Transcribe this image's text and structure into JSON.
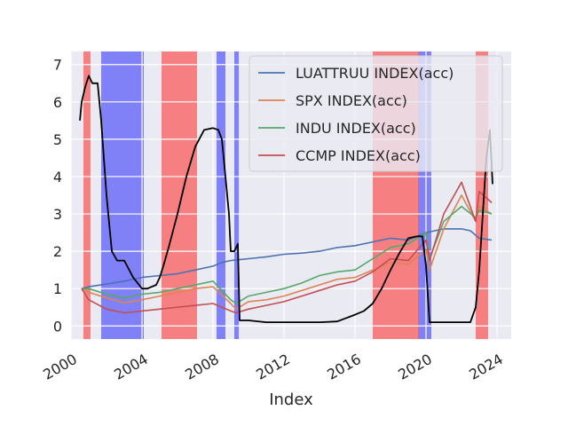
{
  "chart_data": {
    "type": "line",
    "title": "",
    "xlabel": "Index",
    "ylabel": "",
    "xlim": [
      2000.0,
      2024.8
    ],
    "ylim": [
      -0.35,
      7.35
    ],
    "x_ticks": [
      2000,
      2004,
      2008,
      2012,
      2016,
      2020,
      2024
    ],
    "y_ticks": [
      0,
      1,
      2,
      3,
      4,
      5,
      6,
      7
    ],
    "grid": true,
    "legend_position": "upper-right",
    "colors": {
      "background": "#eaeaf2",
      "grid": "#ffffff",
      "red_band": "#f77a7a",
      "blue_band": "#7a7af7",
      "rate": "#000000"
    },
    "shaded_regions": [
      {
        "start": 2000.7,
        "end": 2001.1,
        "color": "red"
      },
      {
        "start": 2001.7,
        "end": 2004.1,
        "color": "blue"
      },
      {
        "start": 2005.1,
        "end": 2007.1,
        "color": "red"
      },
      {
        "start": 2008.2,
        "end": 2008.7,
        "color": "blue"
      },
      {
        "start": 2009.2,
        "end": 2009.45,
        "color": "blue"
      },
      {
        "start": 2017.0,
        "end": 2019.55,
        "color": "red"
      },
      {
        "start": 2019.55,
        "end": 2020.3,
        "color": "blue"
      },
      {
        "start": 2022.8,
        "end": 2023.5,
        "color": "red"
      }
    ],
    "series": [
      {
        "name": "LUATTRUU INDEX(acc)",
        "color": "#4c72b0",
        "x": [
          2000.6,
          2001,
          2002,
          2003,
          2004,
          2005,
          2006,
          2007,
          2008,
          2008.5,
          2009,
          2010,
          2011,
          2012,
          2013,
          2014,
          2015,
          2016,
          2017,
          2018,
          2019,
          2020,
          2020.5,
          2021,
          2022,
          2022.5,
          2023,
          2023.7
        ],
        "values": [
          1.0,
          1.05,
          1.12,
          1.2,
          1.3,
          1.35,
          1.4,
          1.5,
          1.6,
          1.7,
          1.75,
          1.8,
          1.85,
          1.92,
          1.95,
          2.0,
          2.1,
          2.15,
          2.25,
          2.35,
          2.3,
          2.5,
          2.55,
          2.6,
          2.6,
          2.55,
          2.35,
          2.3
        ]
      },
      {
        "name": "SPX INDEX(acc)",
        "color": "#dd8452",
        "x": [
          2000.6,
          2001,
          2002,
          2003,
          2004,
          2005,
          2006,
          2007,
          2008,
          2009,
          2009.3,
          2010,
          2011,
          2012,
          2013,
          2014,
          2015,
          2016,
          2017,
          2018,
          2019,
          2020,
          2020.2,
          2021,
          2022,
          2022.8,
          2023,
          2023.7
        ],
        "values": [
          1.0,
          0.9,
          0.75,
          0.62,
          0.7,
          0.8,
          0.9,
          1.0,
          1.05,
          0.6,
          0.45,
          0.65,
          0.7,
          0.8,
          0.95,
          1.1,
          1.25,
          1.3,
          1.5,
          1.7,
          1.65,
          2.05,
          1.5,
          2.6,
          3.5,
          2.8,
          3.2,
          3.0
        ]
      },
      {
        "name": "INDU INDEX(acc)",
        "color": "#55a868",
        "x": [
          2000.6,
          2001,
          2002,
          2003,
          2004,
          2005,
          2006,
          2007,
          2008,
          2009,
          2009.3,
          2010,
          2011,
          2012,
          2013,
          2014,
          2015,
          2016,
          2017,
          2018,
          2019,
          2020,
          2020.2,
          2021,
          2022,
          2022.8,
          2023,
          2023.7
        ],
        "values": [
          1.0,
          1.0,
          0.85,
          0.75,
          0.85,
          0.9,
          1.0,
          1.1,
          1.2,
          0.7,
          0.6,
          0.8,
          0.9,
          1.0,
          1.15,
          1.35,
          1.45,
          1.5,
          1.8,
          2.1,
          2.2,
          2.5,
          1.8,
          2.8,
          3.2,
          2.9,
          3.1,
          3.0
        ]
      },
      {
        "name": "CCMP INDEX(acc)",
        "color": "#c44e52",
        "x": [
          2000.6,
          2001,
          2002,
          2003,
          2004,
          2005,
          2006,
          2007,
          2008,
          2009,
          2009.3,
          2010,
          2011,
          2012,
          2013,
          2014,
          2015,
          2016,
          2017,
          2018,
          2019,
          2020,
          2020.2,
          2021,
          2022,
          2022.8,
          2023,
          2023.7
        ],
        "values": [
          1.0,
          0.7,
          0.45,
          0.35,
          0.4,
          0.45,
          0.5,
          0.55,
          0.6,
          0.4,
          0.35,
          0.45,
          0.55,
          0.65,
          0.8,
          0.95,
          1.1,
          1.2,
          1.45,
          1.8,
          1.75,
          2.3,
          1.75,
          3.0,
          3.85,
          2.8,
          3.6,
          3.3
        ]
      },
      {
        "name": "",
        "color": "#000000",
        "x": [
          2000.5,
          2000.6,
          2000.8,
          2001.0,
          2001.2,
          2001.5,
          2001.7,
          2002.0,
          2002.3,
          2002.6,
          2003.0,
          2003.5,
          2004.0,
          2004.3,
          2004.8,
          2005.0,
          2005.2,
          2005.5,
          2006.0,
          2006.5,
          2007.0,
          2007.5,
          2008.0,
          2008.3,
          2008.5,
          2008.7,
          2008.9,
          2009.0,
          2009.2,
          2009.4,
          2009.5,
          2010,
          2011,
          2012,
          2013,
          2014,
          2015,
          2016,
          2016.5,
          2017.0,
          2017.5,
          2018.0,
          2018.5,
          2019.0,
          2019.5,
          2019.8,
          2020.0,
          2020.2,
          2020.4,
          2021,
          2022,
          2022.5,
          2022.8,
          2023.0,
          2023.2,
          2023.4,
          2023.6,
          2023.75
        ],
        "values": [
          5.5,
          6.0,
          6.4,
          6.7,
          6.5,
          6.5,
          5.5,
          3.5,
          2.0,
          1.75,
          1.75,
          1.3,
          1.0,
          1.0,
          1.1,
          1.3,
          1.6,
          2.1,
          3.0,
          4.0,
          4.8,
          5.25,
          5.3,
          5.25,
          5.0,
          4.0,
          3.0,
          2.0,
          2.0,
          2.2,
          0.15,
          0.15,
          0.1,
          0.1,
          0.1,
          0.1,
          0.12,
          0.3,
          0.4,
          0.6,
          1.0,
          1.5,
          1.95,
          2.35,
          2.4,
          2.4,
          1.6,
          0.1,
          0.1,
          0.1,
          0.1,
          0.1,
          0.5,
          1.5,
          3.0,
          4.5,
          5.25,
          3.8
        ]
      }
    ]
  }
}
